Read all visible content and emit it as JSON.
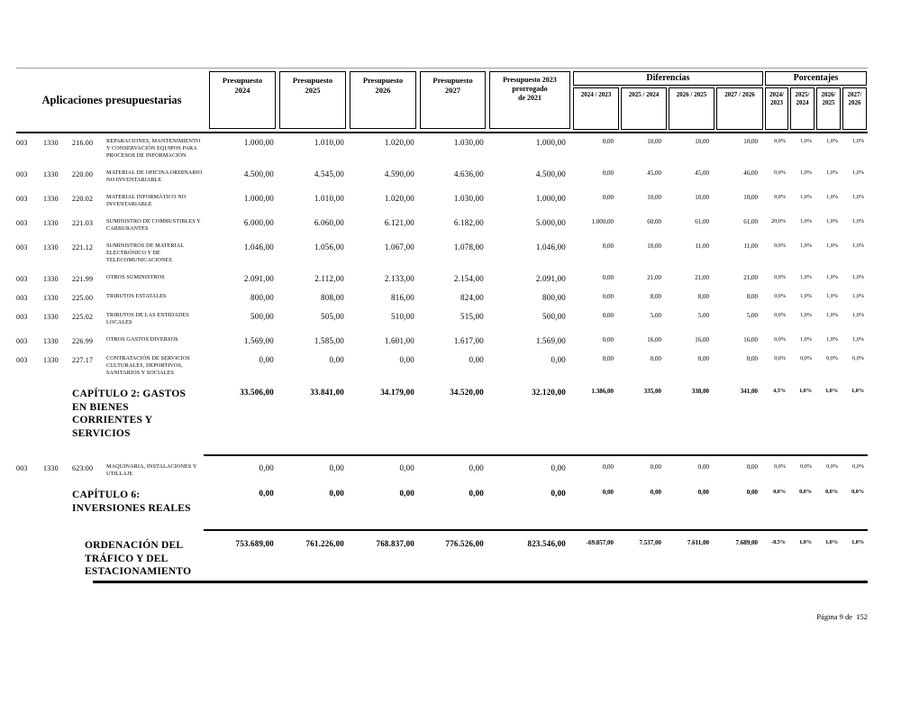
{
  "header": {
    "applications_title": "Aplicaciones presupuestarias",
    "budget_cols": [
      "Presupuesto\n2024",
      "Presupuesto\n2025",
      "Presupuesto\n2026",
      "Presupuesto\n2027",
      "Presupuesto 2023\nprorrogado\nde 2021"
    ],
    "diferencias_label": "Diferencias",
    "diferencias_cols": [
      "2024 / 2023",
      "2025 / 2024",
      "2026 / 2025",
      "2027 / 2026"
    ],
    "porcentajes_label": "Porcentajes",
    "porcentajes_cols": [
      "2024/\n2023",
      "2025/\n2024",
      "2026/\n2025",
      "2027/\n2026"
    ]
  },
  "rows": [
    {
      "type": "item",
      "org": "003",
      "func": "1330",
      "econ": "216.00",
      "desc": "REPARACIONES, MANTENIMIENTO Y CONSERVACIÓN EQUIPOS PARA PROCESOS DE INFORMACIÓN",
      "values": [
        "1.000,00",
        "1.010,00",
        "1.020,00",
        "1.030,00",
        "1.000,00"
      ],
      "difs": [
        "0,00",
        "10,00",
        "10,00",
        "10,00"
      ],
      "pcts": [
        "0,0%",
        "1,0%",
        "1,0%",
        "1,0%"
      ]
    },
    {
      "type": "item",
      "org": "003",
      "func": "1330",
      "econ": "220.00",
      "desc": "MATERIAL DE OFICINA ORDINARIO NO INVENTARIABLE",
      "values": [
        "4.500,00",
        "4.545,00",
        "4.590,00",
        "4.636,00",
        "4.500,00"
      ],
      "difs": [
        "0,00",
        "45,00",
        "45,00",
        "46,00"
      ],
      "pcts": [
        "0,0%",
        "1,0%",
        "1,0%",
        "1,0%"
      ]
    },
    {
      "type": "item",
      "org": "003",
      "func": "1330",
      "econ": "220.02",
      "desc": "MATERIAL INFORMÁTICO NO INVENTARIABLE",
      "values": [
        "1.000,00",
        "1.010,00",
        "1.020,00",
        "1.030,00",
        "1.000,00"
      ],
      "difs": [
        "0,00",
        "10,00",
        "10,00",
        "10,00"
      ],
      "pcts": [
        "0,0%",
        "1,0%",
        "1,0%",
        "1,0%"
      ]
    },
    {
      "type": "item",
      "org": "003",
      "func": "1330",
      "econ": "221.03",
      "desc": "SUMINISTRO DE COMBUSTIBLES Y CARBURANTES",
      "values": [
        "6.000,00",
        "6.060,00",
        "6.121,00",
        "6.182,00",
        "5.000,00"
      ],
      "difs": [
        "1.000,00",
        "60,00",
        "61,00",
        "61,00"
      ],
      "pcts": [
        "20,0%",
        "1,0%",
        "1,0%",
        "1,0%"
      ]
    },
    {
      "type": "item",
      "org": "003",
      "func": "1330",
      "econ": "221.12",
      "desc": "SUMINISTROS DE MATERIAL ELECTRÓNICO Y DE TELECOMUNICACIONES",
      "values": [
        "1.046,00",
        "1.056,00",
        "1.067,00",
        "1.078,00",
        "1.046,00"
      ],
      "difs": [
        "0,00",
        "10,00",
        "11,00",
        "11,00"
      ],
      "pcts": [
        "0,0%",
        "1,0%",
        "1,0%",
        "1,0%"
      ]
    },
    {
      "type": "item",
      "org": "003",
      "func": "1330",
      "econ": "221.99",
      "desc": "OTROS SUMINISTROS",
      "values": [
        "2.091,00",
        "2.112,00",
        "2.133,00",
        "2.154,00",
        "2.091,00"
      ],
      "difs": [
        "0,00",
        "21,00",
        "21,00",
        "21,00"
      ],
      "pcts": [
        "0,0%",
        "1,0%",
        "1,0%",
        "1,0%"
      ]
    },
    {
      "type": "item",
      "org": "003",
      "func": "1330",
      "econ": "225.00",
      "desc": "TRIBUTOS ESTATALES",
      "values": [
        "800,00",
        "808,00",
        "816,00",
        "824,00",
        "800,00"
      ],
      "difs": [
        "0,00",
        "8,00",
        "8,00",
        "8,00"
      ],
      "pcts": [
        "0,0%",
        "1,0%",
        "1,0%",
        "1,0%"
      ]
    },
    {
      "type": "item",
      "org": "003",
      "func": "1330",
      "econ": "225.02",
      "desc": "TRIBUTOS DE LAS ENTIDADES LOCALES",
      "values": [
        "500,00",
        "505,00",
        "510,00",
        "515,00",
        "500,00"
      ],
      "difs": [
        "0,00",
        "5,00",
        "5,00",
        "5,00"
      ],
      "pcts": [
        "0,0%",
        "1,0%",
        "1,0%",
        "1,0%"
      ]
    },
    {
      "type": "item",
      "org": "003",
      "func": "1330",
      "econ": "226.99",
      "desc": "OTROS GASTOS DIVERSOS",
      "values": [
        "1.569,00",
        "1.585,00",
        "1.601,00",
        "1.617,00",
        "1.569,00"
      ],
      "difs": [
        "0,00",
        "16,00",
        "16,00",
        "16,00"
      ],
      "pcts": [
        "0,0%",
        "1,0%",
        "1,0%",
        "1,0%"
      ]
    },
    {
      "type": "item",
      "org": "003",
      "func": "1330",
      "econ": "227.17",
      "desc": "CONTRATACIÓN DE SERVICIOS CULTURALES, DEPORTIVOS, SANITARIOS Y SOCIALES",
      "values": [
        "0,00",
        "0,00",
        "0,00",
        "0,00",
        "0,00"
      ],
      "difs": [
        "0,00",
        "0,00",
        "0,00",
        "0,00"
      ],
      "pcts": [
        "0,0%",
        "0,0%",
        "0,0%",
        "0,0%"
      ]
    },
    {
      "type": "chapter",
      "desc": "CAPÍTULO 2: GASTOS EN BIENES CORRIENTES Y SERVICIOS",
      "values": [
        "33.506,00",
        "33.841,00",
        "34.179,00",
        "34.520,00",
        "32.120,00"
      ],
      "difs": [
        "1.386,00",
        "335,00",
        "338,00",
        "341,00"
      ],
      "pcts": [
        "4,3%",
        "1,0%",
        "1,0%",
        "1,0%"
      ]
    },
    {
      "type": "item",
      "separator_before": true,
      "org": "003",
      "func": "1330",
      "econ": "623.00",
      "desc": "MAQUINARIA, INSTALACIONES Y UTILLAJE",
      "values": [
        "0,00",
        "0,00",
        "0,00",
        "0,00",
        "0,00"
      ],
      "difs": [
        "0,00",
        "0,00",
        "0,00",
        "0,00"
      ],
      "pcts": [
        "0,0%",
        "0,0%",
        "0,0%",
        "0,0%"
      ]
    },
    {
      "type": "chapter",
      "desc": "CAPÍTULO 6: INVERSIONES REALES",
      "values": [
        "0,00",
        "0,00",
        "0,00",
        "0,00",
        "0,00"
      ],
      "difs": [
        "0,00",
        "0,00",
        "0,00",
        "0,00"
      ],
      "pcts": [
        "0,0%",
        "0,0%",
        "0,0%",
        "0,0%"
      ]
    },
    {
      "type": "total",
      "separator_before": true,
      "desc": "ORDENACIÓN DEL TRÁFICO Y DEL ESTACIONAMIENTO",
      "values": [
        "753.689,00",
        "761.226,00",
        "768.837,00",
        "776.526,00",
        "823.546,00"
      ],
      "difs": [
        "-69.857,00",
        "7.537,00",
        "7.611,00",
        "7.689,00"
      ],
      "pcts": [
        "-8,5%",
        "1,0%",
        "1,0%",
        "1,0%"
      ]
    }
  ],
  "footer": {
    "page_label": "Página 9 de  152"
  }
}
